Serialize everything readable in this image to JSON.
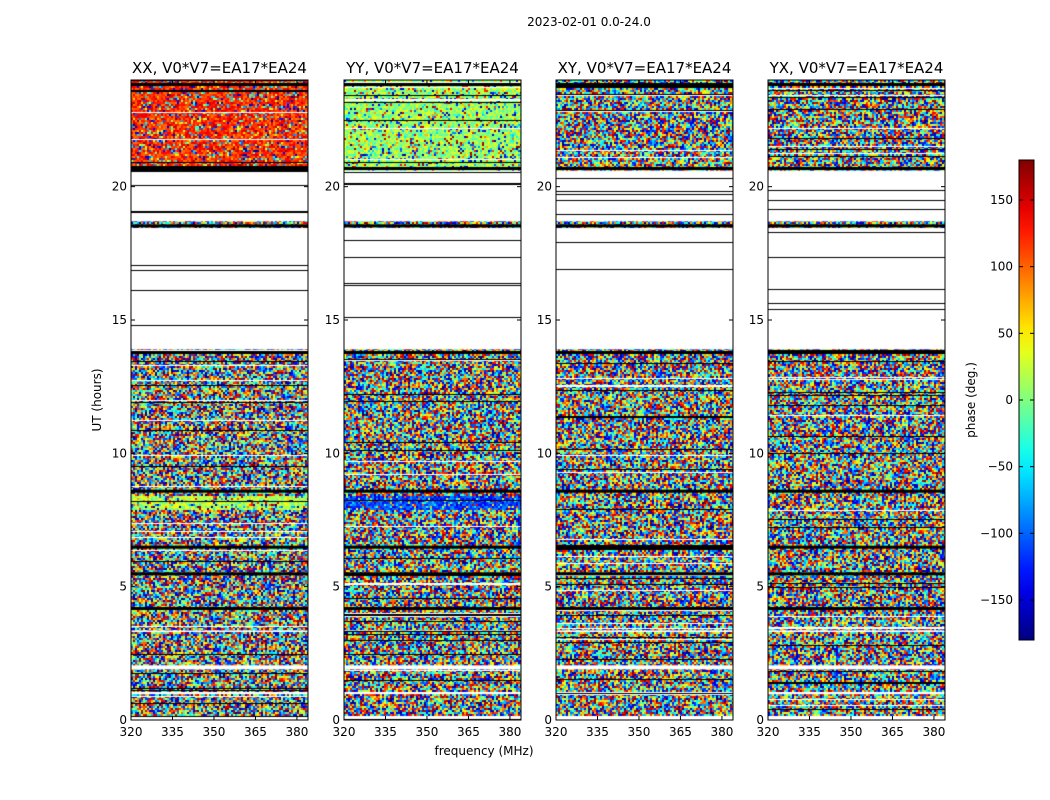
{
  "chart_data": {
    "type": "heatmap",
    "suptitle": "2023-02-01 0.0-24.0",
    "xlabel": "frequency (MHz)",
    "ylabel": "UT (hours)",
    "xlim": [
      320,
      384
    ],
    "ylim": [
      0,
      24
    ],
    "xticks": [
      320,
      335,
      350,
      365,
      380
    ],
    "yticks": [
      0,
      5,
      10,
      15,
      20
    ],
    "colorbar": {
      "label": "phase (deg.)",
      "range": [
        -180,
        180
      ],
      "ticks": [
        150,
        100,
        50,
        0,
        -50,
        -100,
        -150
      ],
      "tick_labels": [
        "150",
        "100",
        "50",
        "0",
        "−50",
        "−100",
        "−150"
      ],
      "colormap": "jet"
    },
    "panels": [
      {
        "title": "XX, V0*V7=EA17*EA24",
        "high_ut_phase_deg": 120,
        "mid_band_phase_deg": 20
      },
      {
        "title": "YY, V0*V7=EA17*EA24",
        "high_ut_phase_deg": 10,
        "mid_band_phase_deg": -110
      },
      {
        "title": "XY, V0*V7=EA17*EA24",
        "high_ut_phase_deg": null,
        "mid_band_phase_deg": null
      },
      {
        "title": "YX, V0*V7=EA17*EA24",
        "high_ut_phase_deg": null,
        "mid_band_phase_deg": null
      }
    ],
    "data_gaps_ut": [
      [
        18.7,
        20.6
      ],
      [
        13.9,
        18.45
      ],
      [
        0.0,
        0.15
      ],
      [
        0.97,
        1.05
      ],
      [
        1.9,
        2.05
      ],
      [
        3.3,
        3.36
      ]
    ],
    "flagged_black_rows_ut": [
      23.85,
      20.7,
      18.55,
      13.8,
      8.6,
      6.5,
      5.5,
      4.2
    ]
  },
  "colors": {
    "axis": "#000000",
    "background": "#ffffff",
    "gap": "#ffffff",
    "flag": "#000000"
  }
}
